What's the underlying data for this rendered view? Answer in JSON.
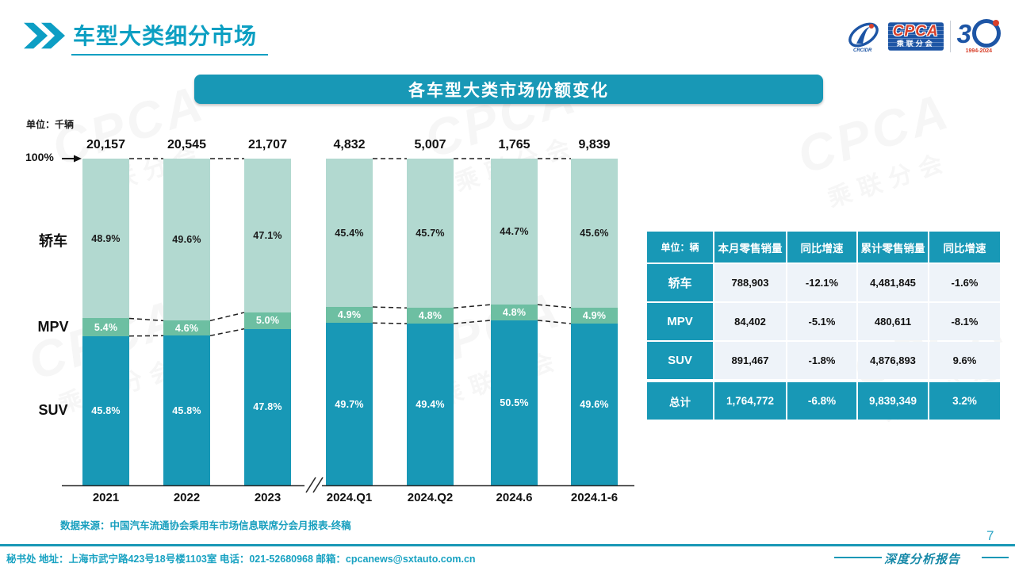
{
  "page": {
    "title": "车型大类细分市场",
    "page_number": "7",
    "report_label": "深度分析报告",
    "source": "数据来源：中国汽车流通协会乘用车市场信息联席分会月报表-终稿",
    "footer": "秘书处  地址：上海市武宁路423号18号楼1103室  电话：021-52680968   邮箱：cpcanews@sxtauto.com.cn"
  },
  "logo": {
    "cpca": "CPCA",
    "cpca_sub": "乘联分会",
    "anniversary_3": "3",
    "anniversary_years": "1994-2024"
  },
  "watermark": {
    "text": "CPCA",
    "subtext": "乘联分会"
  },
  "banner": {
    "title": "各车型大类市场份额变化"
  },
  "chart_data": {
    "type": "bar",
    "stacked": true,
    "title": "各车型大类市场份额变化",
    "unit_label": "单位：千辆",
    "axis_label_100": "100%",
    "ylim": [
      0,
      100
    ],
    "grid": false,
    "axis_break_after": "2023",
    "categories": [
      "2021",
      "2022",
      "2023",
      "2024.Q1",
      "2024.Q2",
      "2024.6",
      "2024.1-6"
    ],
    "totals": [
      "20,157",
      "20,545",
      "21,707",
      "4,832",
      "5,007",
      "1,765",
      "9,839"
    ],
    "series": [
      {
        "name": "轿车",
        "color": "#b2d9d0",
        "label_color": "dark",
        "values": [
          48.9,
          49.6,
          47.1,
          45.4,
          45.7,
          44.7,
          45.6
        ],
        "labels": [
          "48.9%",
          "49.6%",
          "47.1%",
          "45.4%",
          "45.7%",
          "44.7%",
          "45.6%"
        ]
      },
      {
        "name": "MPV",
        "color": "#6dbfa2",
        "label_color": "light",
        "values": [
          5.4,
          4.6,
          5.0,
          4.9,
          4.8,
          4.8,
          4.9
        ],
        "labels": [
          "5.4%",
          "4.6%",
          "5.0%",
          "4.9%",
          "4.8%",
          "4.8%",
          "4.9%"
        ]
      },
      {
        "name": "SUV",
        "color": "#1898b6",
        "label_color": "light",
        "values": [
          45.8,
          45.8,
          47.8,
          49.7,
          49.4,
          50.5,
          49.6
        ],
        "labels": [
          "45.8%",
          "45.8%",
          "47.8%",
          "49.7%",
          "49.4%",
          "50.5%",
          "49.6%"
        ]
      }
    ]
  },
  "table": {
    "headers": [
      "单位：辆",
      "本月零售销量",
      "同比增速",
      "累计零售销量",
      "同比增速"
    ],
    "rows": [
      {
        "label": "轿车",
        "cells": [
          "788,903",
          "-12.1%",
          "4,481,845",
          "-1.6%"
        ]
      },
      {
        "label": "MPV",
        "cells": [
          "84,402",
          "-5.1%",
          "480,611",
          "-8.1%"
        ]
      },
      {
        "label": "SUV",
        "cells": [
          "891,467",
          "-1.8%",
          "4,876,893",
          "9.6%"
        ]
      }
    ],
    "total_row": {
      "label": "总计",
      "cells": [
        "1,764,772",
        "-6.8%",
        "9,839,349",
        "3.2%"
      ]
    }
  },
  "colors": {
    "accent_teal": "#1898b6",
    "title_teal": "#0c9fc2",
    "sedan_segment": "#b2d9d0",
    "mpv_segment": "#6dbfa2",
    "suv_segment": "#1898b6",
    "table_cell_bg": "#eef3f9",
    "logo_blue": "#1d55a5",
    "logo_red": "#d8402a"
  }
}
